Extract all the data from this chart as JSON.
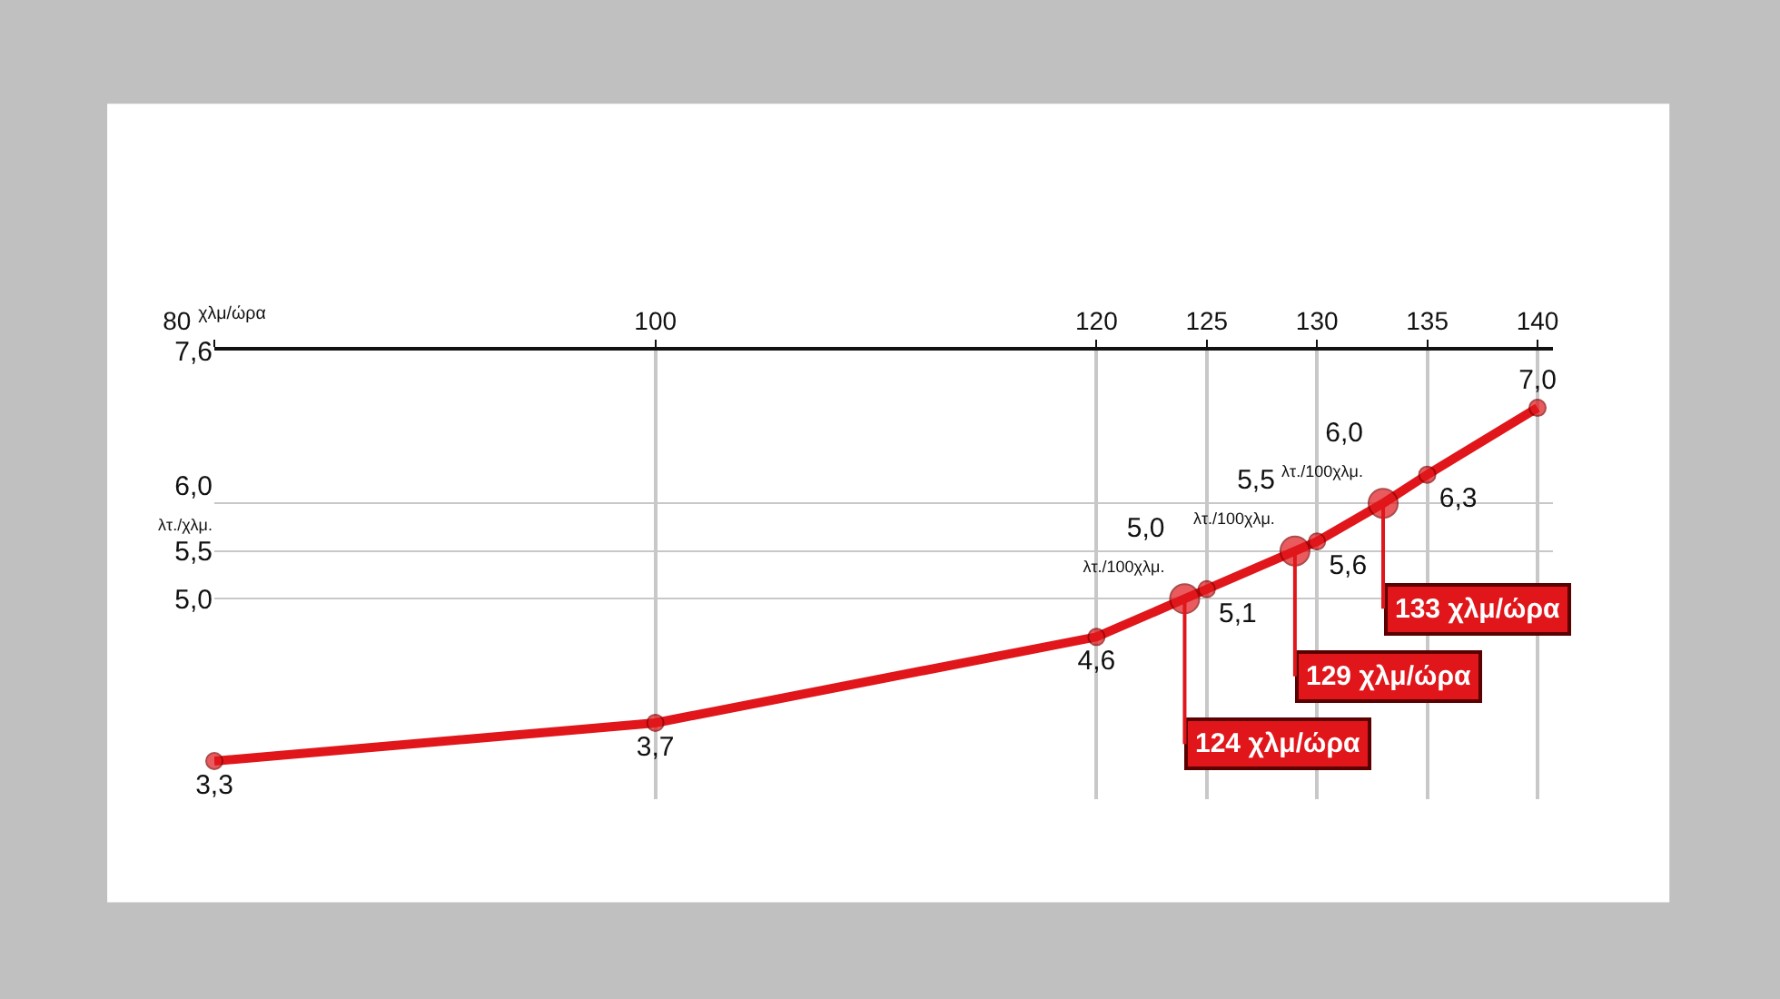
{
  "chart_data": {
    "type": "line",
    "x": [
      80,
      100,
      120,
      124,
      125,
      129,
      130,
      133,
      135,
      140
    ],
    "values": [
      3.3,
      3.7,
      4.6,
      5.0,
      5.1,
      5.5,
      5.6,
      6.0,
      6.3,
      7.0
    ],
    "value_labels": [
      "3,3",
      "3,7",
      "4,6",
      "5,0\nλτ./100χλμ.",
      "5,1",
      "5,5\nλτ./100χλμ.",
      "5,6",
      "6,0\nλτ./100χλμ.",
      "6,3",
      "7,0"
    ],
    "color": "#e0161b",
    "marker": "circle",
    "xlim": [
      80,
      140.7
    ],
    "xticks": [
      {
        "value": 80,
        "label": "80 $^{χλμ/ώρα}$"
      },
      100,
      120,
      125,
      130,
      135,
      140
    ],
    "ylim": [
      2.9,
      7.6
    ],
    "yticks": [
      {
        "value": 5.0,
        "label": "5,0"
      },
      {
        "value": 5.5,
        "label": "5,5"
      },
      {
        "value": 6.0,
        "label": "6,0\nλτ./χλμ."
      },
      {
        "value": 7.6,
        "label": "7,6"
      }
    ],
    "grid": true,
    "annotations": [
      {
        "text": "124 χλμ/ώρα",
        "x": 124,
        "y": 5.0
      },
      {
        "text": "129 χλμ/ώρα",
        "x": 129,
        "y": 5.5
      },
      {
        "text": "133 χλμ/ώρα",
        "x": 133,
        "y": 6.0
      }
    ]
  }
}
